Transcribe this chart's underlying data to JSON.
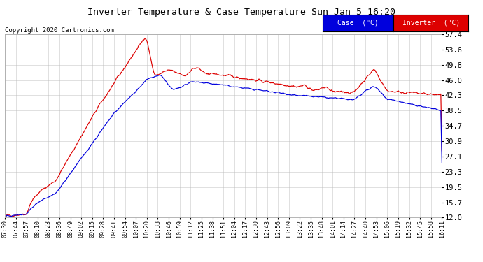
{
  "title": "Inverter Temperature & Case Temperature Sun Jan 5 16:20",
  "copyright": "Copyright 2020 Cartronics.com",
  "legend_case_label": "Case  (°C)",
  "legend_inverter_label": "Inverter  (°C)",
  "case_color": "#0000dd",
  "inverter_color": "#dd0000",
  "legend_case_bg": "#0000dd",
  "legend_inverter_bg": "#dd0000",
  "yticks": [
    12.0,
    15.7,
    19.5,
    23.3,
    27.1,
    30.9,
    34.7,
    38.5,
    42.3,
    46.0,
    49.8,
    53.6,
    57.4
  ],
  "ylim": [
    12.0,
    57.4
  ],
  "background_color": "#ffffff",
  "plot_bg_color": "#ffffff",
  "grid_color": "#bbbbbb",
  "xtick_labels": [
    "07:30",
    "07:44",
    "07:57",
    "08:10",
    "08:23",
    "08:36",
    "08:49",
    "09:02",
    "09:15",
    "09:28",
    "09:41",
    "09:54",
    "10:07",
    "10:20",
    "10:33",
    "10:46",
    "10:59",
    "11:12",
    "11:25",
    "11:38",
    "11:51",
    "12:04",
    "12:17",
    "12:30",
    "12:43",
    "12:56",
    "13:09",
    "13:22",
    "13:35",
    "13:48",
    "14:01",
    "14:14",
    "14:27",
    "14:40",
    "14:53",
    "15:06",
    "15:19",
    "15:32",
    "15:45",
    "15:58",
    "16:11"
  ]
}
